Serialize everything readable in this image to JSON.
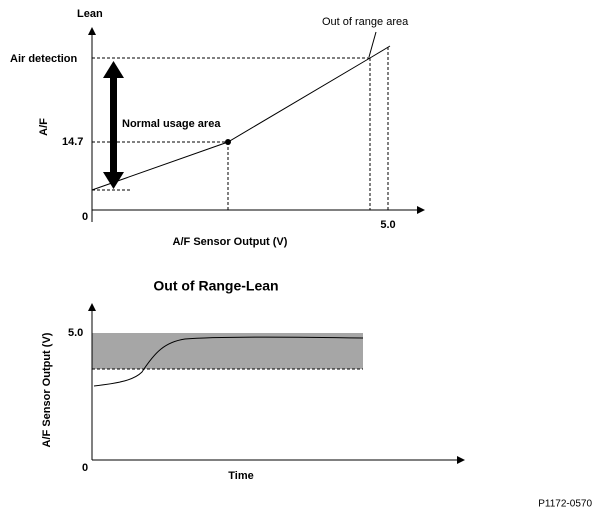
{
  "top_graph": {
    "y_axis_title": "Lean",
    "y_label": "A/F",
    "air_detection": "Air detection",
    "tick_14_7": "14.7",
    "origin": "0",
    "tick_5_0": "5.0",
    "out_of_range": "Out of range area",
    "normal_usage": "Normal usage area",
    "x_label": "A/F Sensor Output (V)"
  },
  "bottom_graph": {
    "title": "Out of Range-Lean",
    "y_label": "A/F Sensor Output (V)",
    "tick_5_0": "5.0",
    "origin": "0",
    "x_label": "Time"
  },
  "figure_code": "P1172-0570"
}
